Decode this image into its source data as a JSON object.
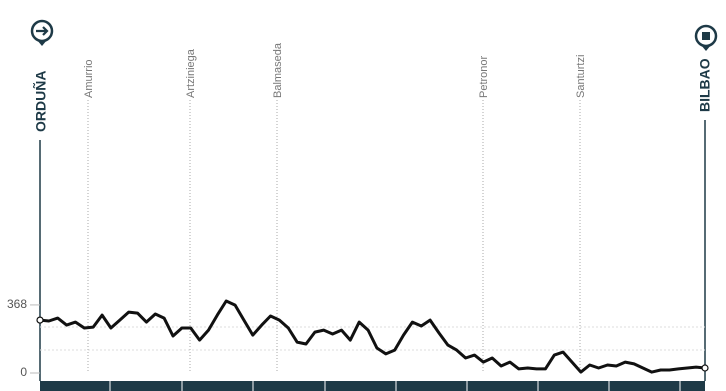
{
  "chart_data": {
    "type": "line",
    "start": "ORDUÑA",
    "end": "BILBAO",
    "places": [
      "Amurrio",
      "Artziniega",
      "Balmaseda",
      "Petronor",
      "Santurtzi"
    ],
    "values": [
      286,
      281,
      297,
      259,
      275,
      243,
      248,
      313,
      243,
      286,
      329,
      324,
      275,
      319,
      297,
      200,
      243,
      243,
      178,
      232,
      313,
      389,
      367,
      286,
      205,
      259,
      308,
      286,
      243,
      167,
      157,
      221,
      232,
      211,
      232,
      178,
      275,
      232,
      135,
      103,
      124,
      205,
      275,
      254,
      286,
      216,
      151,
      124,
      81,
      97,
      59,
      81,
      38,
      59,
      22,
      27,
      22,
      22,
      97,
      113,
      59,
      5,
      43,
      27,
      43,
      38,
      59,
      49,
      27,
      5,
      16,
      16,
      22,
      27,
      32,
      27
    ],
    "color": "#111111",
    "ylim": [
      0,
      1800
    ],
    "yticks": [
      0,
      368
    ]
  }
}
